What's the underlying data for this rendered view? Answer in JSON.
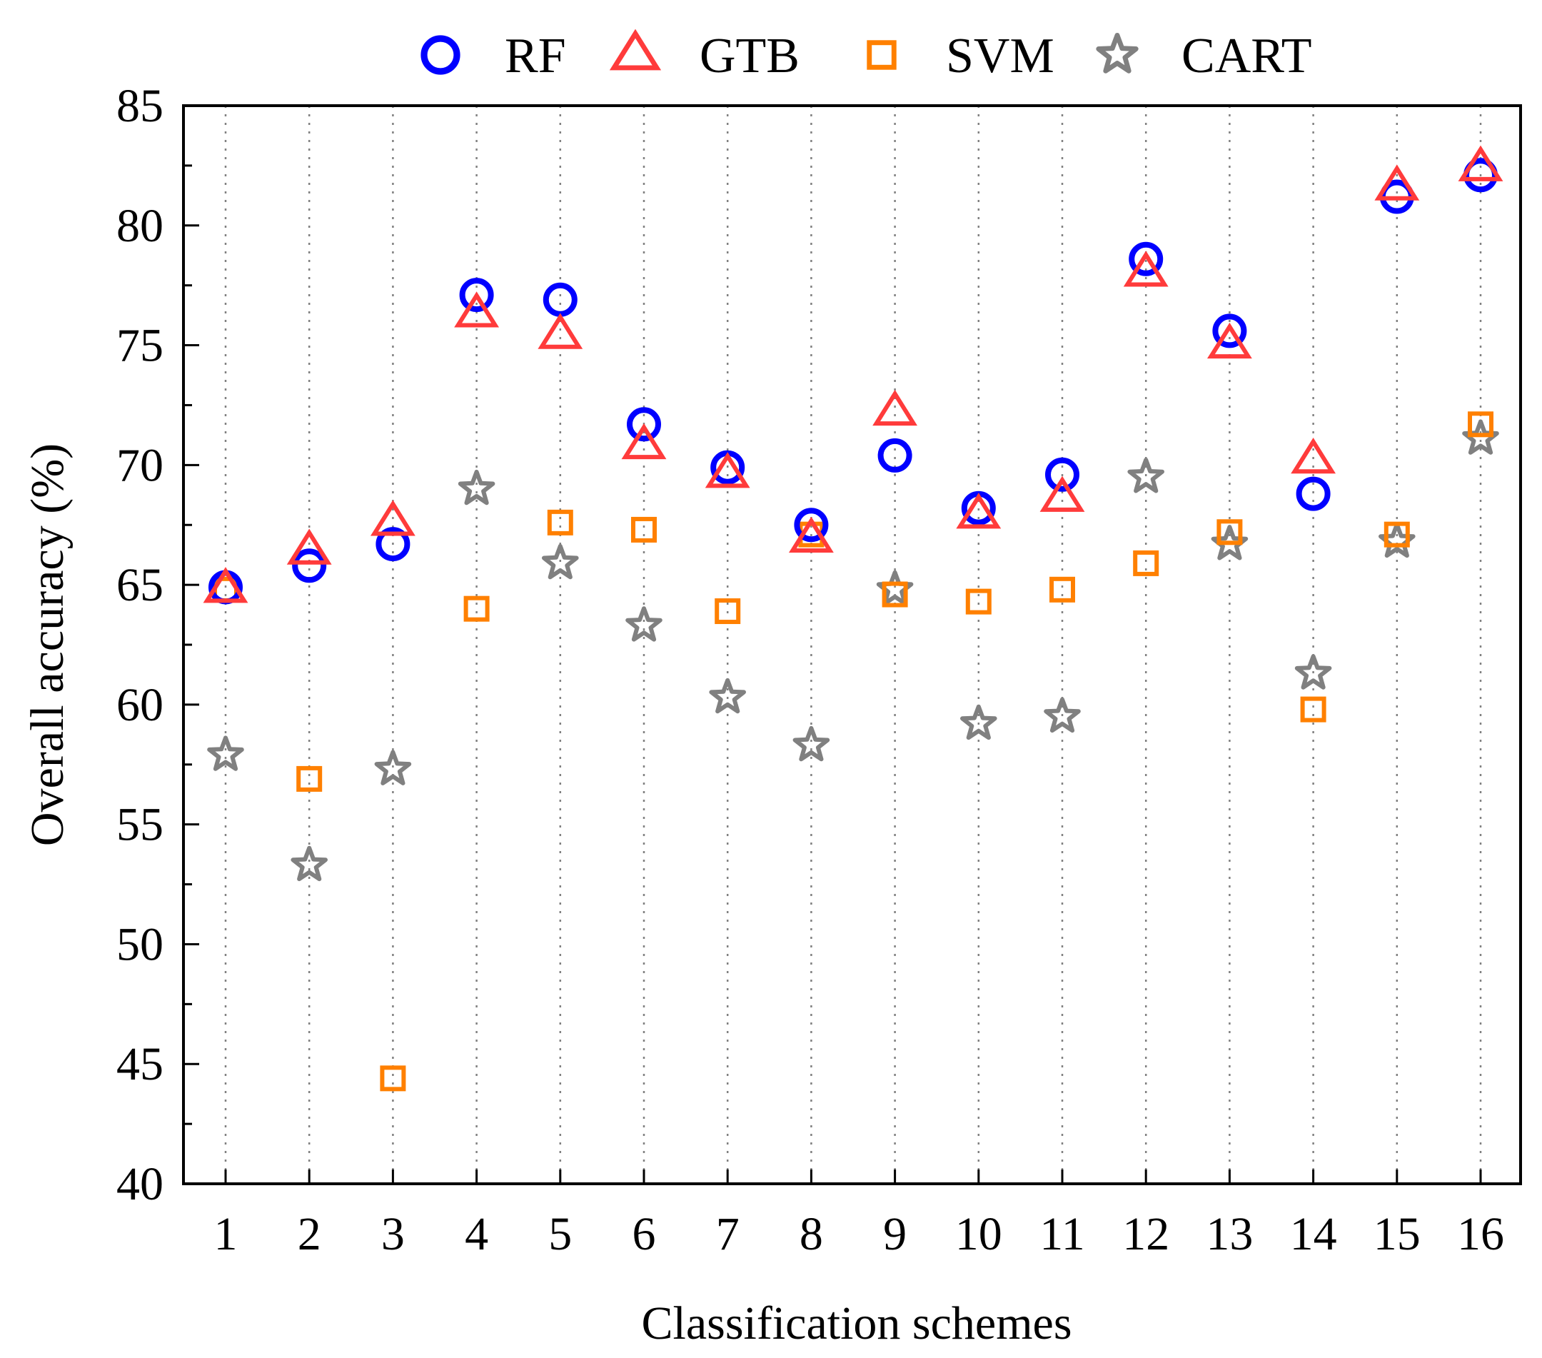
{
  "chart_data": {
    "type": "scatter",
    "title": "",
    "xlabel": "Classification schemes",
    "ylabel": "Overall accuracy (%)",
    "categories": [
      "1",
      "2",
      "3",
      "4",
      "5",
      "6",
      "7",
      "8",
      "9",
      "10",
      "11",
      "12",
      "13",
      "14",
      "15",
      "16"
    ],
    "ylim": [
      40,
      85
    ],
    "y_ticks": [
      "40",
      "45",
      "50",
      "55",
      "60",
      "65",
      "70",
      "75",
      "80",
      "85"
    ],
    "grid": "vertical dotted",
    "legend_position": "top",
    "series": [
      {
        "name": "RF",
        "marker": "circle",
        "color": "#0000ff",
        "values": [
          64.9,
          65.8,
          66.7,
          77.1,
          76.9,
          71.7,
          69.9,
          67.5,
          70.4,
          68.2,
          69.6,
          78.6,
          75.6,
          68.8,
          81.2,
          82.1
        ]
      },
      {
        "name": "GTB",
        "marker": "triangle",
        "color": "#ff3b3b",
        "values": [
          64.8,
          66.4,
          67.6,
          76.3,
          75.4,
          70.8,
          69.6,
          66.9,
          72.2,
          67.9,
          68.6,
          78.0,
          75.0,
          70.2,
          81.6,
          82.4
        ]
      },
      {
        "name": "SVM",
        "marker": "square",
        "color": "#ff8000",
        "values": [
          64.8,
          56.9,
          44.4,
          64.0,
          67.6,
          67.3,
          63.9,
          67.1,
          64.6,
          64.3,
          64.8,
          65.9,
          67.2,
          59.8,
          67.1,
          71.7
        ]
      },
      {
        "name": "CART",
        "marker": "star",
        "color": "#808080",
        "values": [
          57.9,
          53.3,
          57.3,
          69.0,
          65.9,
          63.3,
          60.3,
          58.3,
          64.8,
          59.2,
          59.5,
          69.5,
          66.7,
          61.3,
          66.8,
          71.1
        ]
      }
    ]
  }
}
